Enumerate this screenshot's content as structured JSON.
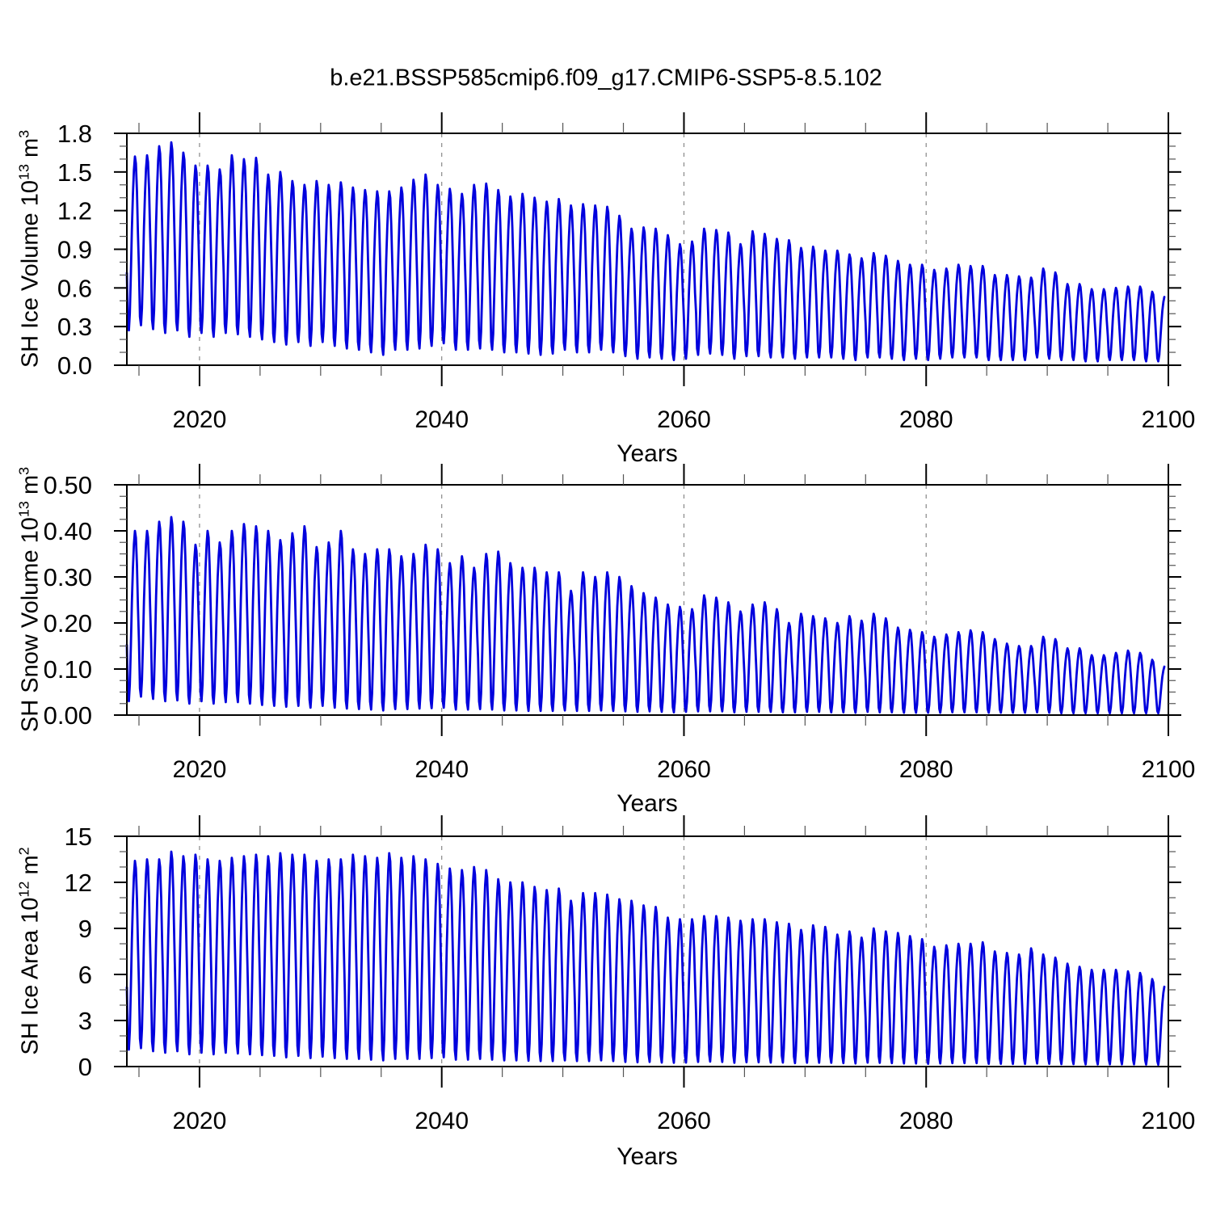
{
  "title": "b.e21.BSSP585cmip6.f09_g17.CMIP6-SSP5-8.5.102",
  "style": {
    "line_color": "#0000dd",
    "grid_color": "#888888",
    "frame_color": "#000000",
    "minor_tick_color": "#555555",
    "text_color": "#000000"
  },
  "chart_data": [
    {
      "id": "ice-volume",
      "type": "line",
      "title": "",
      "xlabel": "Years",
      "ylabel": "SH Ice Volume 10^13 m^3",
      "ylabel_parts": [
        {
          "t": "SH Ice Volume 10"
        },
        {
          "t": "13",
          "sup": true
        },
        {
          "t": " m"
        },
        {
          "t": "3",
          "sup": true
        }
      ],
      "x_range": [
        2014,
        2100
      ],
      "y_range": [
        0,
        1.8
      ],
      "x_ticks": [
        2020,
        2040,
        2060,
        2080,
        2100
      ],
      "x_tick_labels": [
        "2020",
        "2040",
        "2060",
        "2080",
        "2100"
      ],
      "x_minor_step": 5,
      "y_ticks": [
        0,
        0.3,
        0.6,
        0.9,
        1.2,
        1.5,
        1.8
      ],
      "y_tick_labels": [
        "0.0",
        "0.3",
        "0.6",
        "0.9",
        "1.2",
        "1.5",
        "1.8"
      ],
      "y_minor_step": 0.1,
      "grid": "dashed-vertical-at-x-majors",
      "legend": "none",
      "series_color": "#0000dd",
      "series": {
        "name": "SH ice volume monthly",
        "cadence": "monthly",
        "years": [
          2014,
          2015,
          2016,
          2017,
          2018,
          2019,
          2020,
          2021,
          2022,
          2023,
          2024,
          2025,
          2026,
          2027,
          2028,
          2029,
          2030,
          2031,
          2032,
          2033,
          2034,
          2035,
          2036,
          2037,
          2038,
          2039,
          2040,
          2041,
          2042,
          2043,
          2044,
          2045,
          2046,
          2047,
          2048,
          2049,
          2050,
          2051,
          2052,
          2053,
          2054,
          2055,
          2056,
          2057,
          2058,
          2059,
          2060,
          2061,
          2062,
          2063,
          2064,
          2065,
          2066,
          2067,
          2068,
          2069,
          2070,
          2071,
          2072,
          2073,
          2074,
          2075,
          2076,
          2077,
          2078,
          2079,
          2080,
          2081,
          2082,
          2083,
          2084,
          2085,
          2086,
          2087,
          2088,
          2089,
          2090,
          2091,
          2092,
          2093,
          2094,
          2095,
          2096,
          2097,
          2098,
          2099
        ],
        "annual_max": [
          1.62,
          1.63,
          1.7,
          1.73,
          1.65,
          1.55,
          1.55,
          1.52,
          1.63,
          1.6,
          1.61,
          1.48,
          1.5,
          1.43,
          1.4,
          1.43,
          1.4,
          1.42,
          1.38,
          1.36,
          1.35,
          1.35,
          1.38,
          1.44,
          1.48,
          1.4,
          1.37,
          1.33,
          1.4,
          1.41,
          1.36,
          1.31,
          1.33,
          1.3,
          1.27,
          1.29,
          1.24,
          1.25,
          1.24,
          1.23,
          1.16,
          1.06,
          1.07,
          1.06,
          1.01,
          0.94,
          0.96,
          1.06,
          1.05,
          1.03,
          0.94,
          1.04,
          1.02,
          0.98,
          0.97,
          0.91,
          0.92,
          0.89,
          0.89,
          0.86,
          0.83,
          0.87,
          0.85,
          0.81,
          0.78,
          0.78,
          0.74,
          0.75,
          0.78,
          0.77,
          0.77,
          0.7,
          0.7,
          0.69,
          0.68,
          0.75,
          0.72,
          0.63,
          0.63,
          0.59,
          0.59,
          0.6,
          0.61,
          0.61,
          0.57,
          0.53
        ],
        "annual_min": [
          0.27,
          0.31,
          0.28,
          0.25,
          0.27,
          0.22,
          0.25,
          0.22,
          0.25,
          0.24,
          0.22,
          0.2,
          0.18,
          0.16,
          0.18,
          0.15,
          0.18,
          0.15,
          0.13,
          0.12,
          0.1,
          0.08,
          0.12,
          0.12,
          0.13,
          0.15,
          0.17,
          0.12,
          0.12,
          0.13,
          0.12,
          0.1,
          0.1,
          0.09,
          0.08,
          0.09,
          0.12,
          0.1,
          0.1,
          0.12,
          0.1,
          0.07,
          0.05,
          0.06,
          0.05,
          0.04,
          0.05,
          0.08,
          0.09,
          0.08,
          0.05,
          0.07,
          0.07,
          0.06,
          0.06,
          0.05,
          0.06,
          0.06,
          0.06,
          0.05,
          0.04,
          0.06,
          0.06,
          0.05,
          0.04,
          0.05,
          0.04,
          0.05,
          0.06,
          0.06,
          0.06,
          0.04,
          0.04,
          0.04,
          0.04,
          0.06,
          0.05,
          0.04,
          0.04,
          0.03,
          0.03,
          0.04,
          0.04,
          0.04,
          0.03,
          0.03
        ],
        "seasonal_profile_by_month": [
          0.33,
          0.05,
          0.0,
          0.1,
          0.33,
          0.58,
          0.78,
          0.92,
          1.0,
          0.96,
          0.8,
          0.56
        ],
        "last_month_index": 8
      }
    },
    {
      "id": "snow-volume",
      "type": "line",
      "title": "",
      "xlabel": "Years",
      "ylabel": "SH Snow Volume 10^13 m^3",
      "ylabel_parts": [
        {
          "t": "SH Snow Volume 10"
        },
        {
          "t": "13",
          "sup": true
        },
        {
          "t": " m"
        },
        {
          "t": "3",
          "sup": true
        }
      ],
      "x_range": [
        2014,
        2100
      ],
      "y_range": [
        0,
        0.5
      ],
      "x_ticks": [
        2020,
        2040,
        2060,
        2080,
        2100
      ],
      "x_tick_labels": [
        "2020",
        "2040",
        "2060",
        "2080",
        "2100"
      ],
      "x_minor_step": 5,
      "y_ticks": [
        0,
        0.1,
        0.2,
        0.3,
        0.4,
        0.5
      ],
      "y_tick_labels": [
        "0.00",
        "0.10",
        "0.20",
        "0.30",
        "0.40",
        "0.50"
      ],
      "y_minor_step": 0.025,
      "grid": "dashed-vertical-at-x-majors",
      "legend": "none",
      "series_color": "#0000dd",
      "series": {
        "name": "SH snow volume monthly",
        "cadence": "monthly",
        "years": [
          2014,
          2015,
          2016,
          2017,
          2018,
          2019,
          2020,
          2021,
          2022,
          2023,
          2024,
          2025,
          2026,
          2027,
          2028,
          2029,
          2030,
          2031,
          2032,
          2033,
          2034,
          2035,
          2036,
          2037,
          2038,
          2039,
          2040,
          2041,
          2042,
          2043,
          2044,
          2045,
          2046,
          2047,
          2048,
          2049,
          2050,
          2051,
          2052,
          2053,
          2054,
          2055,
          2056,
          2057,
          2058,
          2059,
          2060,
          2061,
          2062,
          2063,
          2064,
          2065,
          2066,
          2067,
          2068,
          2069,
          2070,
          2071,
          2072,
          2073,
          2074,
          2075,
          2076,
          2077,
          2078,
          2079,
          2080,
          2081,
          2082,
          2083,
          2084,
          2085,
          2086,
          2087,
          2088,
          2089,
          2090,
          2091,
          2092,
          2093,
          2094,
          2095,
          2096,
          2097,
          2098,
          2099
        ],
        "annual_max": [
          0.4,
          0.4,
          0.42,
          0.43,
          0.42,
          0.37,
          0.4,
          0.375,
          0.4,
          0.415,
          0.41,
          0.4,
          0.38,
          0.395,
          0.41,
          0.365,
          0.375,
          0.4,
          0.36,
          0.35,
          0.36,
          0.36,
          0.345,
          0.35,
          0.37,
          0.36,
          0.33,
          0.345,
          0.32,
          0.35,
          0.355,
          0.33,
          0.32,
          0.32,
          0.31,
          0.31,
          0.27,
          0.31,
          0.3,
          0.31,
          0.3,
          0.28,
          0.265,
          0.255,
          0.24,
          0.235,
          0.23,
          0.26,
          0.255,
          0.245,
          0.225,
          0.24,
          0.245,
          0.23,
          0.2,
          0.22,
          0.215,
          0.21,
          0.2,
          0.215,
          0.205,
          0.22,
          0.21,
          0.19,
          0.185,
          0.18,
          0.17,
          0.175,
          0.18,
          0.184,
          0.18,
          0.165,
          0.155,
          0.15,
          0.15,
          0.17,
          0.165,
          0.145,
          0.145,
          0.13,
          0.13,
          0.135,
          0.14,
          0.135,
          0.12,
          0.105
        ],
        "annual_min": [
          0.03,
          0.04,
          0.035,
          0.03,
          0.032,
          0.025,
          0.03,
          0.025,
          0.028,
          0.028,
          0.025,
          0.022,
          0.02,
          0.018,
          0.02,
          0.016,
          0.02,
          0.016,
          0.014,
          0.013,
          0.012,
          0.01,
          0.013,
          0.013,
          0.014,
          0.015,
          0.016,
          0.012,
          0.012,
          0.013,
          0.012,
          0.01,
          0.01,
          0.009,
          0.009,
          0.009,
          0.01,
          0.009,
          0.009,
          0.01,
          0.009,
          0.008,
          0.007,
          0.008,
          0.007,
          0.006,
          0.007,
          0.008,
          0.008,
          0.008,
          0.006,
          0.007,
          0.007,
          0.007,
          0.006,
          0.006,
          0.007,
          0.007,
          0.006,
          0.006,
          0.005,
          0.007,
          0.006,
          0.006,
          0.005,
          0.005,
          0.005,
          0.005,
          0.006,
          0.006,
          0.006,
          0.005,
          0.005,
          0.005,
          0.005,
          0.006,
          0.005,
          0.004,
          0.004,
          0.004,
          0.004,
          0.004,
          0.004,
          0.004,
          0.004,
          0.004
        ],
        "seasonal_profile_by_month": [
          0.33,
          0.05,
          0.0,
          0.1,
          0.33,
          0.58,
          0.78,
          0.92,
          1.0,
          0.96,
          0.8,
          0.56
        ],
        "last_month_index": 8
      }
    },
    {
      "id": "ice-area",
      "type": "line",
      "title": "",
      "xlabel": "Years",
      "ylabel": "SH Ice Area 10^12 m^2",
      "ylabel_parts": [
        {
          "t": "SH Ice Area 10"
        },
        {
          "t": "12",
          "sup": true
        },
        {
          "t": " m"
        },
        {
          "t": "2",
          "sup": true
        }
      ],
      "x_range": [
        2014,
        2100
      ],
      "y_range": [
        0,
        15
      ],
      "x_ticks": [
        2020,
        2040,
        2060,
        2080,
        2100
      ],
      "x_tick_labels": [
        "2020",
        "2040",
        "2060",
        "2080",
        "2100"
      ],
      "x_minor_step": 5,
      "y_ticks": [
        0,
        3,
        6,
        9,
        12,
        15
      ],
      "y_tick_labels": [
        "0",
        "3",
        "6",
        "9",
        "12",
        "15"
      ],
      "y_minor_step": 1,
      "grid": "dashed-vertical-at-x-majors",
      "legend": "none",
      "series_color": "#0000dd",
      "series": {
        "name": "SH ice area monthly",
        "cadence": "monthly",
        "years": [
          2014,
          2015,
          2016,
          2017,
          2018,
          2019,
          2020,
          2021,
          2022,
          2023,
          2024,
          2025,
          2026,
          2027,
          2028,
          2029,
          2030,
          2031,
          2032,
          2033,
          2034,
          2035,
          2036,
          2037,
          2038,
          2039,
          2040,
          2041,
          2042,
          2043,
          2044,
          2045,
          2046,
          2047,
          2048,
          2049,
          2050,
          2051,
          2052,
          2053,
          2054,
          2055,
          2056,
          2057,
          2058,
          2059,
          2060,
          2061,
          2062,
          2063,
          2064,
          2065,
          2066,
          2067,
          2068,
          2069,
          2070,
          2071,
          2072,
          2073,
          2074,
          2075,
          2076,
          2077,
          2078,
          2079,
          2080,
          2081,
          2082,
          2083,
          2084,
          2085,
          2086,
          2087,
          2088,
          2089,
          2090,
          2091,
          2092,
          2093,
          2094,
          2095,
          2096,
          2097,
          2098,
          2099
        ],
        "annual_max": [
          13.4,
          13.5,
          13.5,
          14.0,
          13.7,
          13.8,
          13.5,
          13.4,
          13.6,
          13.7,
          13.8,
          13.7,
          13.9,
          13.8,
          13.8,
          13.4,
          13.5,
          13.5,
          13.8,
          13.7,
          13.6,
          13.9,
          13.6,
          13.7,
          13.5,
          13.2,
          12.9,
          12.8,
          13.0,
          12.8,
          12.2,
          12.0,
          12.0,
          11.7,
          11.5,
          11.6,
          10.8,
          11.3,
          11.3,
          11.2,
          10.9,
          10.8,
          10.5,
          10.4,
          9.7,
          9.6,
          9.6,
          9.8,
          9.8,
          9.7,
          9.5,
          9.6,
          9.6,
          9.4,
          9.3,
          8.9,
          9.2,
          9.1,
          8.6,
          8.8,
          8.4,
          9.0,
          8.8,
          8.7,
          8.5,
          8.3,
          7.8,
          7.9,
          8.0,
          8.0,
          8.1,
          7.5,
          7.4,
          7.3,
          7.7,
          7.3,
          7.1,
          6.7,
          6.5,
          6.3,
          6.3,
          6.3,
          6.2,
          6.1,
          5.7,
          5.2
        ],
        "annual_min": [
          1.1,
          1.2,
          1.0,
          0.9,
          1.0,
          0.8,
          0.9,
          0.8,
          0.9,
          0.85,
          0.8,
          0.75,
          0.7,
          0.6,
          0.7,
          0.55,
          0.65,
          0.55,
          0.5,
          0.5,
          0.45,
          0.4,
          0.5,
          0.5,
          0.5,
          0.55,
          0.6,
          0.45,
          0.45,
          0.5,
          0.45,
          0.4,
          0.4,
          0.38,
          0.36,
          0.36,
          0.4,
          0.36,
          0.36,
          0.4,
          0.36,
          0.3,
          0.28,
          0.3,
          0.26,
          0.24,
          0.26,
          0.3,
          0.32,
          0.3,
          0.24,
          0.28,
          0.28,
          0.26,
          0.26,
          0.22,
          0.25,
          0.25,
          0.24,
          0.22,
          0.2,
          0.26,
          0.24,
          0.22,
          0.2,
          0.2,
          0.18,
          0.2,
          0.22,
          0.22,
          0.22,
          0.18,
          0.18,
          0.17,
          0.17,
          0.2,
          0.18,
          0.16,
          0.16,
          0.14,
          0.14,
          0.15,
          0.15,
          0.15,
          0.13,
          0.12
        ],
        "seasonal_profile_by_month": [
          0.33,
          0.05,
          0.0,
          0.1,
          0.33,
          0.58,
          0.78,
          0.92,
          1.0,
          0.96,
          0.8,
          0.56
        ],
        "last_month_index": 8
      }
    }
  ]
}
